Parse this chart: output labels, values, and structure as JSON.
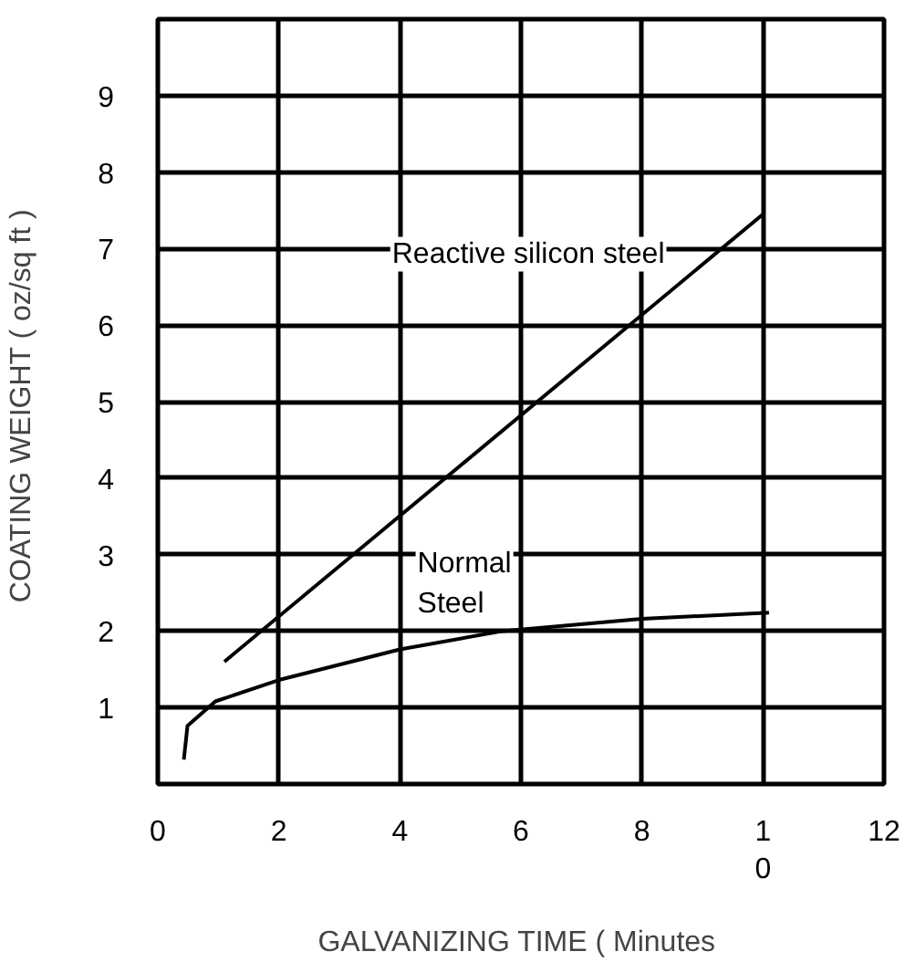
{
  "chart_data": {
    "type": "line",
    "xlabel": "GALVANIZING TIME  ( Minutes",
    "ylabel": "COATING WEIGHT  ( oz/sq ft )",
    "series": [
      {
        "name": "Reactive silicon steel",
        "color": "#000000",
        "x": [
          1.1,
          10
        ],
        "values": [
          1.6,
          7.45
        ]
      },
      {
        "name": "Normal\nSteel",
        "color": "#000000",
        "x": [
          0.43,
          0.49,
          0.95,
          2,
          4,
          5.7,
          8,
          10.1
        ],
        "values": [
          0.32,
          0.76,
          1.08,
          1.36,
          1.76,
          2.0,
          2.16,
          2.24
        ]
      }
    ],
    "xlim": [
      0,
      12
    ],
    "ylim": [
      0,
      10
    ],
    "xticks": [
      0,
      2,
      4,
      6,
      8,
      {
        "value": 10,
        "label": "1\n0"
      },
      12
    ],
    "yticks": [
      1,
      2,
      3,
      4,
      5,
      6,
      7,
      8,
      9
    ],
    "grid": true,
    "legend": false,
    "marker": "none",
    "line_style": "solid"
  }
}
